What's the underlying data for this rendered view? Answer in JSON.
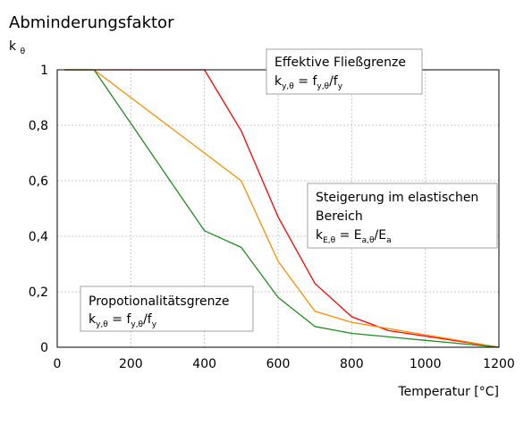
{
  "chart_data": {
    "type": "line",
    "title": "Abminderungsfaktor",
    "ylabel_main": "k",
    "ylabel_sub": "θ",
    "xlabel": "Temperatur [°C]",
    "xlim": [
      0,
      1200
    ],
    "ylim": [
      0,
      1
    ],
    "x_ticks": [
      0,
      200,
      400,
      600,
      800,
      1000,
      1200
    ],
    "x_tick_labels": [
      "0",
      "200",
      "400",
      "600",
      "800",
      "1000",
      "1200"
    ],
    "y_ticks": [
      0,
      0.2,
      0.4,
      0.6,
      0.8,
      1
    ],
    "y_tick_labels": [
      "0",
      "0,2",
      "0,4",
      "0,6",
      "0,8",
      "1"
    ],
    "grid": true,
    "series": [
      {
        "key": "yield",
        "color": "#ff0000",
        "x": [
          20,
          100,
          200,
          300,
          400,
          500,
          600,
          700,
          800,
          900,
          1000,
          1100,
          1200
        ],
        "y": [
          1.0,
          1.0,
          1.0,
          1.0,
          1.0,
          0.78,
          0.47,
          0.23,
          0.11,
          0.06,
          0.04,
          0.02,
          0.0
        ]
      },
      {
        "key": "elastic",
        "color": "#ff8c00",
        "x": [
          20,
          100,
          200,
          300,
          400,
          500,
          600,
          700,
          800,
          900,
          1000,
          1100,
          1200
        ],
        "y": [
          1.0,
          1.0,
          0.9,
          0.8,
          0.7,
          0.6,
          0.31,
          0.13,
          0.09,
          0.0675,
          0.045,
          0.0225,
          0.0
        ]
      },
      {
        "key": "proportional",
        "color": "#228b22",
        "x": [
          20,
          100,
          200,
          300,
          400,
          500,
          600,
          700,
          800,
          900,
          1000,
          1100,
          1200
        ],
        "y": [
          1.0,
          1.0,
          0.807,
          0.613,
          0.42,
          0.36,
          0.18,
          0.075,
          0.05,
          0.0375,
          0.025,
          0.0125,
          0.0
        ]
      }
    ],
    "annotations": [
      {
        "key": "yield",
        "line1": "Effektive Fließgrenze",
        "formula": [
          {
            "t": "k",
            "s": "n"
          },
          {
            "t": "y,θ",
            "s": "sub"
          },
          {
            "t": " = f",
            "s": "n"
          },
          {
            "t": "y,θ",
            "s": "sub"
          },
          {
            "t": "/f",
            "s": "n"
          },
          {
            "t": "y",
            "s": "sub"
          }
        ]
      },
      {
        "key": "elastic",
        "line1": "Steigerung im elastischen",
        "line2": "Bereich",
        "formula": [
          {
            "t": "k",
            "s": "n"
          },
          {
            "t": "E,θ",
            "s": "sub"
          },
          {
            "t": " = E",
            "s": "n"
          },
          {
            "t": "a,θ",
            "s": "sub"
          },
          {
            "t": "/E",
            "s": "n"
          },
          {
            "t": "a",
            "s": "sub"
          }
        ]
      },
      {
        "key": "proportional",
        "line1": "Propotionalitätsgrenze",
        "formula": [
          {
            "t": "k",
            "s": "n"
          },
          {
            "t": "y,θ",
            "s": "sub"
          },
          {
            "t": " = f",
            "s": "n"
          },
          {
            "t": "y,θ",
            "s": "sub"
          },
          {
            "t": "/f",
            "s": "n"
          },
          {
            "t": "y",
            "s": "sub"
          }
        ]
      }
    ]
  }
}
